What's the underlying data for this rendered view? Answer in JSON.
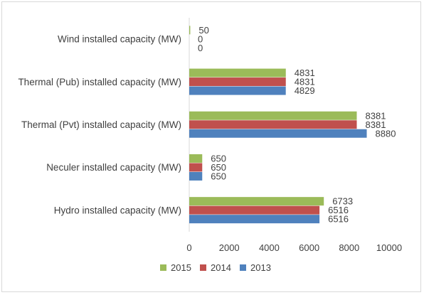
{
  "chart_data": {
    "type": "bar",
    "orientation": "horizontal",
    "categories": [
      "Wind installed capacity (MW)",
      "Thermal (Pub) installed capacity (MW)",
      "Thermal (Pvt) installed capacity (MW)",
      "Neculer installed capacity (MW)",
      "Hydro installed capacity (MW)"
    ],
    "series": [
      {
        "name": "2015",
        "color": "#9bbb59",
        "values": [
          50,
          4831,
          8381,
          650,
          6733
        ]
      },
      {
        "name": "2014",
        "color": "#c0504d",
        "values": [
          0,
          4831,
          8381,
          650,
          6516
        ]
      },
      {
        "name": "2013",
        "color": "#4f81bd",
        "values": [
          0,
          4829,
          8880,
          650,
          6516
        ]
      }
    ],
    "xlim": [
      0,
      10000
    ],
    "xticks": [
      "0",
      "2000",
      "4000",
      "6000",
      "8000",
      "10000"
    ],
    "grid": false,
    "legend_position": "bottom",
    "title": "",
    "xlabel": "",
    "ylabel": ""
  }
}
